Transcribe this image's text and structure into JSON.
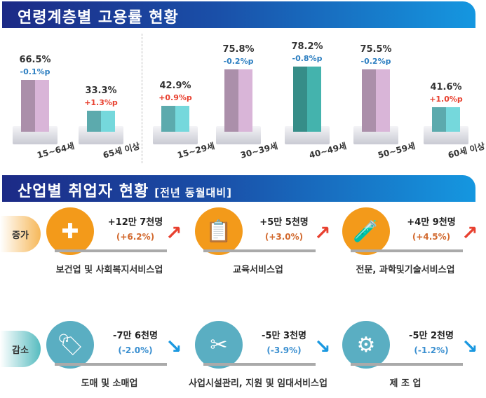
{
  "section1": {
    "title": "연령계층별 고용률 현황"
  },
  "section2": {
    "title": "산업별 취업자 현황",
    "subtitle": "[전년 동월대비]",
    "increase_label": "증가",
    "decrease_label": "감소"
  },
  "chart_data": {
    "type": "bar",
    "title": "연령계층별 고용률 현황",
    "categories": [
      "15~64세",
      "65세 이상",
      "15~29세",
      "30~39세",
      "40~49세",
      "50~59세",
      "60세 이상"
    ],
    "values": [
      66.5,
      33.3,
      42.9,
      75.8,
      78.2,
      75.5,
      41.6
    ],
    "value_labels": [
      "66.5%",
      "33.3%",
      "42.9%",
      "75.8%",
      "78.2%",
      "75.5%",
      "41.6%"
    ],
    "changes": [
      "-0.1%p",
      "+1.3%p",
      "+0.9%p",
      "-0.2%p",
      "-0.8%p",
      "-0.2%p",
      "+1.0%p"
    ],
    "bar_colors": [
      "#c9a8c8",
      "#6cc8cc",
      "#6cc8cc",
      "#c9a8c8",
      "#3fa6a0",
      "#c9a8c8",
      "#6cc8cc"
    ]
  },
  "colors": {
    "increase": "#e8402f",
    "decrease": "#2d7fc1",
    "orange": "#f39a1a",
    "teal": "#5aaec2"
  },
  "industries": {
    "increase": [
      {
        "name": "보건업 및 사회복지서비스업",
        "value": "+12만 7천명",
        "pct": "(+6.2%)",
        "icon": "medical-kit-heart-icon"
      },
      {
        "name": "교육서비스업",
        "value": "+5만 5천명",
        "pct": "(+3.0%)",
        "icon": "clipboard-document-icon"
      },
      {
        "name": "전문, 과학및기술서비스업",
        "value": "+4만 9천명",
        "pct": "(+4.5%)",
        "icon": "test-tubes-icon"
      }
    ],
    "decrease": [
      {
        "name": "도매 및 소매업",
        "value": "-7만 6천명",
        "pct": "(-2.0%)",
        "icon": "sale-tag-shirt-icon"
      },
      {
        "name": "사업시설관리, 지원 및 임대서비스업",
        "value": "-5만 3천명",
        "pct": "(-3.9%)",
        "icon": "tools-people-icon"
      },
      {
        "name": "제 조 업",
        "value": "-5만 2천명",
        "pct": "(-1.2%)",
        "icon": "gear-person-icon"
      }
    ]
  }
}
